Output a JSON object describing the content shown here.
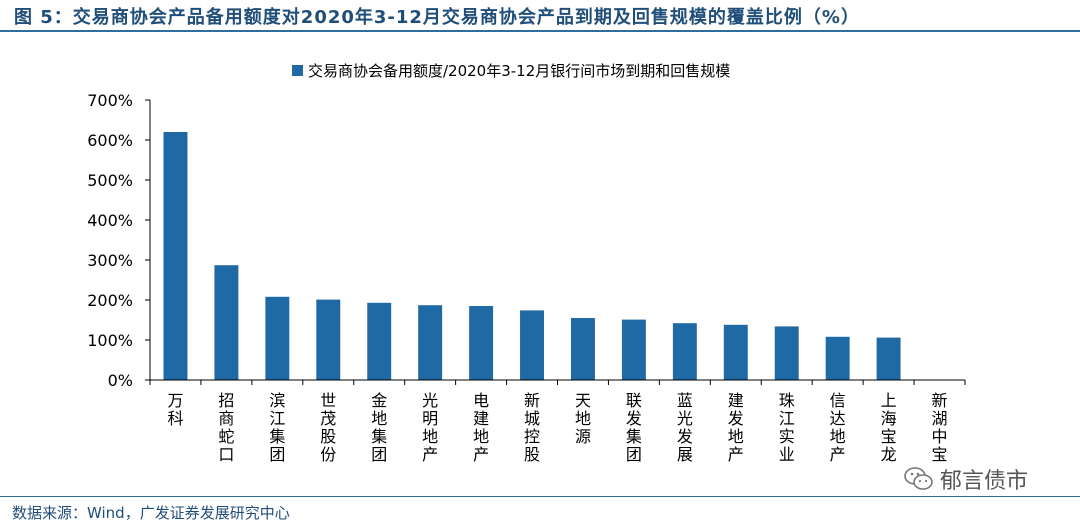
{
  "figure": {
    "title": "图 5：交易商协会产品备用额度对2020年3-12月交易商协会产品到期及回售规模的覆盖比例（%）",
    "source": "数据来源：Wind，广发证券发展研究中心",
    "watermark": "郁言债市"
  },
  "colors": {
    "bar": "#1f6aa5",
    "title": "#1f4e79",
    "axis": "#000000"
  },
  "chart_data": {
    "type": "bar",
    "categories": [
      "万科",
      "招商蛇口",
      "滨江集团",
      "世茂股份",
      "金地集团",
      "光明地产",
      "电建地产",
      "新城控股",
      "天地源",
      "联发集团",
      "蓝光发展",
      "建发地产",
      "珠江实业",
      "信达地产",
      "上海宝龙",
      "新湖中宝"
    ],
    "series": [
      {
        "name": "交易商协会备用额度/2020年3-12月银行间市场到期和回售规模",
        "values": [
          620,
          287,
          208,
          201,
          193,
          187,
          185,
          174,
          155,
          151,
          142,
          138,
          134,
          108,
          106,
          0
        ]
      }
    ],
    "ylim": [
      0,
      700
    ],
    "yticks": [
      0,
      100,
      200,
      300,
      400,
      500,
      600,
      700
    ],
    "ytick_labels": [
      "0%",
      "100%",
      "200%",
      "300%",
      "400%",
      "500%",
      "600%",
      "700%"
    ],
    "legend_position": "top",
    "grid": false
  }
}
